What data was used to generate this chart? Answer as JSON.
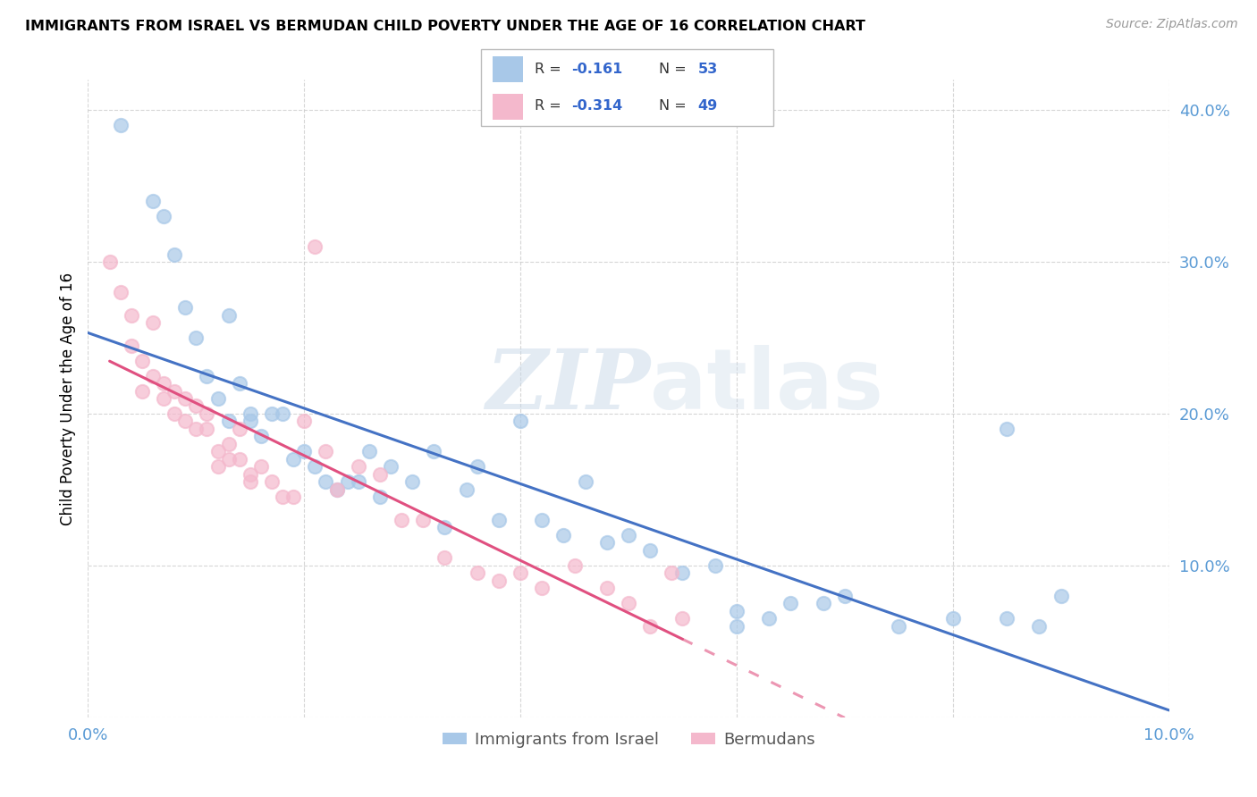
{
  "title": "IMMIGRANTS FROM ISRAEL VS BERMUDAN CHILD POVERTY UNDER THE AGE OF 16 CORRELATION CHART",
  "source": "Source: ZipAtlas.com",
  "ylabel": "Child Poverty Under the Age of 16",
  "xlim": [
    0.0,
    0.1
  ],
  "ylim": [
    0.0,
    0.42
  ],
  "x_ticks": [
    0.0,
    0.02,
    0.04,
    0.06,
    0.08,
    0.1
  ],
  "x_tick_labels": [
    "0.0%",
    "",
    "",
    "",
    "",
    "10.0%"
  ],
  "y_ticks": [
    0.0,
    0.1,
    0.2,
    0.3,
    0.4
  ],
  "y_tick_labels": [
    "",
    "10.0%",
    "20.0%",
    "30.0%",
    "40.0%"
  ],
  "color_blue": "#a8c8e8",
  "color_pink": "#f4b8cc",
  "color_blue_line": "#4472c4",
  "color_pink_line": "#e05080",
  "watermark_zip": "ZIP",
  "watermark_atlas": "atlas",
  "legend_label_blue": "Immigrants from Israel",
  "legend_label_pink": "Bermudans",
  "blue_x": [
    0.003,
    0.006,
    0.007,
    0.008,
    0.009,
    0.01,
    0.011,
    0.012,
    0.013,
    0.013,
    0.014,
    0.015,
    0.015,
    0.016,
    0.017,
    0.018,
    0.019,
    0.02,
    0.021,
    0.022,
    0.023,
    0.024,
    0.025,
    0.026,
    0.027,
    0.028,
    0.03,
    0.032,
    0.033,
    0.035,
    0.036,
    0.038,
    0.04,
    0.042,
    0.044,
    0.046,
    0.048,
    0.05,
    0.052,
    0.055,
    0.058,
    0.06,
    0.063,
    0.065,
    0.068,
    0.07,
    0.075,
    0.08,
    0.085,
    0.088,
    0.09,
    0.085,
    0.06
  ],
  "blue_y": [
    0.39,
    0.34,
    0.33,
    0.305,
    0.27,
    0.25,
    0.225,
    0.21,
    0.195,
    0.265,
    0.22,
    0.2,
    0.195,
    0.185,
    0.2,
    0.2,
    0.17,
    0.175,
    0.165,
    0.155,
    0.15,
    0.155,
    0.155,
    0.175,
    0.145,
    0.165,
    0.155,
    0.175,
    0.125,
    0.15,
    0.165,
    0.13,
    0.195,
    0.13,
    0.12,
    0.155,
    0.115,
    0.12,
    0.11,
    0.095,
    0.1,
    0.07,
    0.065,
    0.075,
    0.075,
    0.08,
    0.06,
    0.065,
    0.065,
    0.06,
    0.08,
    0.19,
    0.06
  ],
  "pink_x": [
    0.002,
    0.003,
    0.004,
    0.004,
    0.005,
    0.005,
    0.006,
    0.006,
    0.007,
    0.007,
    0.008,
    0.008,
    0.009,
    0.009,
    0.01,
    0.01,
    0.011,
    0.011,
    0.012,
    0.012,
    0.013,
    0.013,
    0.014,
    0.014,
    0.015,
    0.015,
    0.016,
    0.017,
    0.018,
    0.019,
    0.02,
    0.021,
    0.022,
    0.023,
    0.025,
    0.027,
    0.029,
    0.031,
    0.033,
    0.036,
    0.038,
    0.04,
    0.042,
    0.045,
    0.048,
    0.05,
    0.052,
    0.054,
    0.055
  ],
  "pink_y": [
    0.3,
    0.28,
    0.265,
    0.245,
    0.235,
    0.215,
    0.26,
    0.225,
    0.22,
    0.21,
    0.215,
    0.2,
    0.21,
    0.195,
    0.205,
    0.19,
    0.2,
    0.19,
    0.175,
    0.165,
    0.18,
    0.17,
    0.19,
    0.17,
    0.16,
    0.155,
    0.165,
    0.155,
    0.145,
    0.145,
    0.195,
    0.31,
    0.175,
    0.15,
    0.165,
    0.16,
    0.13,
    0.13,
    0.105,
    0.095,
    0.09,
    0.095,
    0.085,
    0.1,
    0.085,
    0.075,
    0.06,
    0.095,
    0.065
  ]
}
